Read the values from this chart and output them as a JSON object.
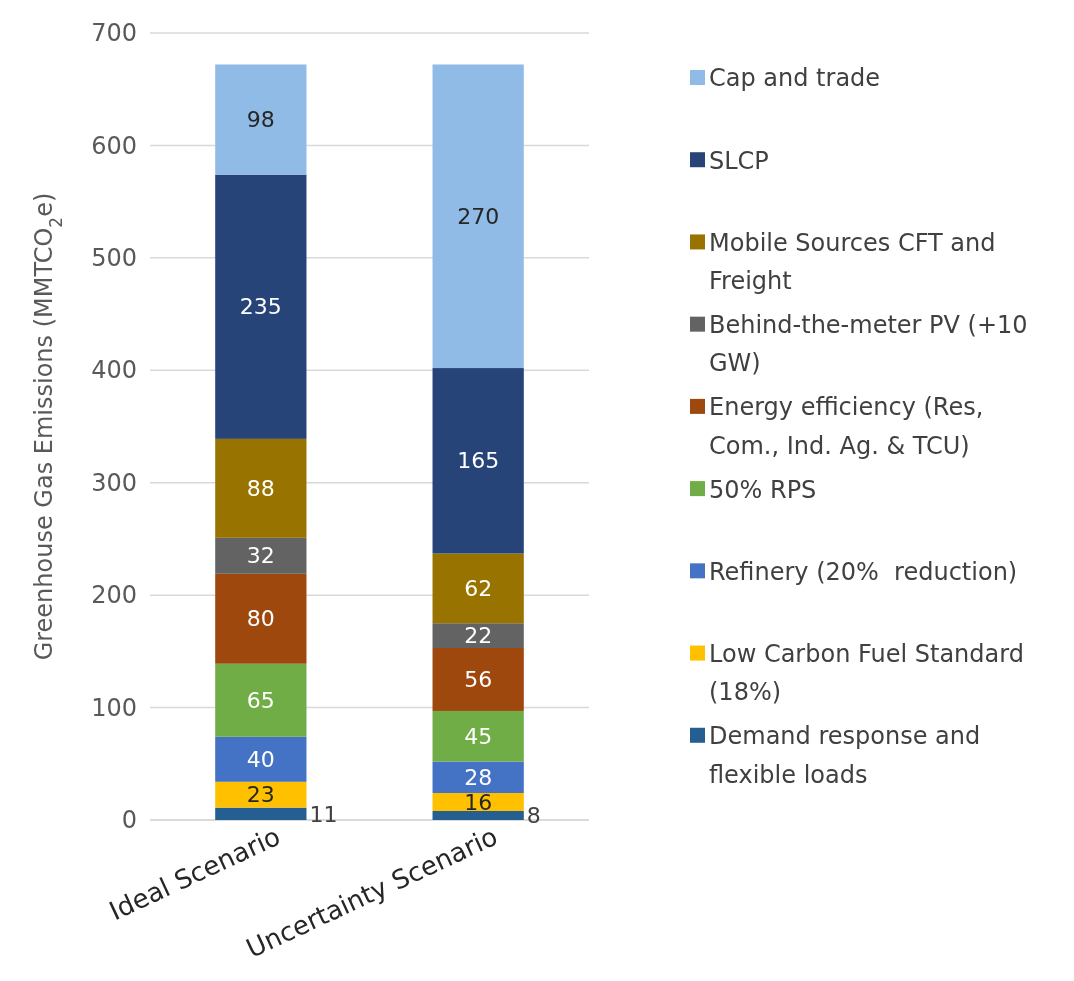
{
  "chart_data": {
    "type": "bar",
    "stacked": true,
    "ylabel": "Greenhouse Gas Emissions (MMTCO$_{2}$e)",
    "categories": [
      "Ideal Scenario",
      "Uncertainty Scenario"
    ],
    "series": [
      {
        "name": "Demand response and flexible loads",
        "color": "#255e91",
        "values": [
          11,
          8
        ]
      },
      {
        "name": "Low Carbon Fuel Standard (18%)",
        "color": "#ffc000",
        "values": [
          23,
          16
        ]
      },
      {
        "name": "Refinery (20%  reduction)",
        "color": "#4472c4",
        "values": [
          40,
          28
        ]
      },
      {
        "name": "50% RPS",
        "color": "#70ad47",
        "values": [
          65,
          45
        ]
      },
      {
        "name": "Energy efficiency (Res, Com., Ind. Ag. & TCU)",
        "color": "#9e480e",
        "values": [
          80,
          56
        ]
      },
      {
        "name": "Behind-the-meter PV (+10 GW)",
        "color": "#636363",
        "values": [
          32,
          22
        ]
      },
      {
        "name": "Mobile Sources CFT and Freight",
        "color": "#997300",
        "values": [
          88,
          62
        ]
      },
      {
        "name": "SLCP",
        "color": "#264478",
        "values": [
          235,
          165
        ]
      },
      {
        "name": "Cap and trade",
        "color": "#8fbbe6",
        "values": [
          98,
          270
        ]
      }
    ],
    "ylim": [
      0,
      700
    ],
    "yticks": [
      0,
      100,
      200,
      300,
      400,
      500,
      600,
      700
    ],
    "grid": "y",
    "legend": "right",
    "data_labels": true
  }
}
